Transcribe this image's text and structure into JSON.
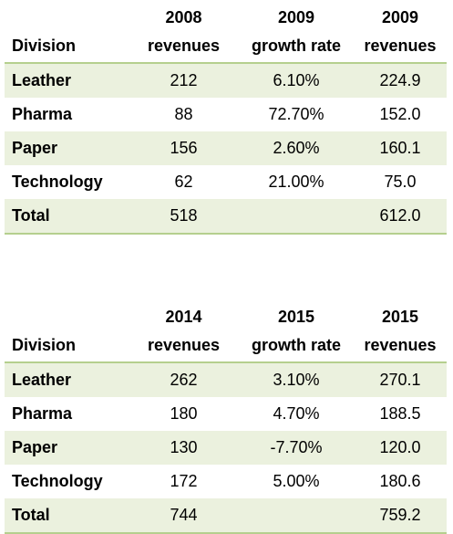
{
  "tables": [
    {
      "header": {
        "division": "Division",
        "col1": [
          "2008",
          "revenues"
        ],
        "col2": [
          "2009",
          "growth rate"
        ],
        "col3": [
          "2009",
          "revenues"
        ]
      },
      "rows": [
        {
          "division": "Leather",
          "revenue_prev": "212",
          "growth": "6.10%",
          "revenue_next": "224.9"
        },
        {
          "division": "Pharma",
          "revenue_prev": "88",
          "growth": "72.70%",
          "revenue_next": "152.0"
        },
        {
          "division": "Paper",
          "revenue_prev": "156",
          "growth": "2.60%",
          "revenue_next": "160.1"
        },
        {
          "division": "Technology",
          "revenue_prev": "62",
          "growth": "21.00%",
          "revenue_next": "75.0"
        },
        {
          "division": "Total",
          "revenue_prev": "518",
          "growth": "",
          "revenue_next": "612.0"
        }
      ]
    },
    {
      "header": {
        "division": "Division",
        "col1": [
          "2014",
          "revenues"
        ],
        "col2": [
          "2015",
          "growth rate"
        ],
        "col3": [
          "2015",
          "revenues"
        ]
      },
      "rows": [
        {
          "division": "Leather",
          "revenue_prev": "262",
          "growth": "3.10%",
          "revenue_next": "270.1"
        },
        {
          "division": "Pharma",
          "revenue_prev": "180",
          "growth": "4.70%",
          "revenue_next": "188.5"
        },
        {
          "division": "Paper",
          "revenue_prev": "130",
          "growth": "-7.70%",
          "revenue_next": "120.0"
        },
        {
          "division": "Technology",
          "revenue_prev": "172",
          "growth": "5.00%",
          "revenue_next": "180.6"
        },
        {
          "division": "Total",
          "revenue_prev": "744",
          "growth": "",
          "revenue_next": "759.2"
        }
      ]
    }
  ],
  "colors": {
    "row_shade": "#ebf1de",
    "rule": "#b5cf8e"
  }
}
